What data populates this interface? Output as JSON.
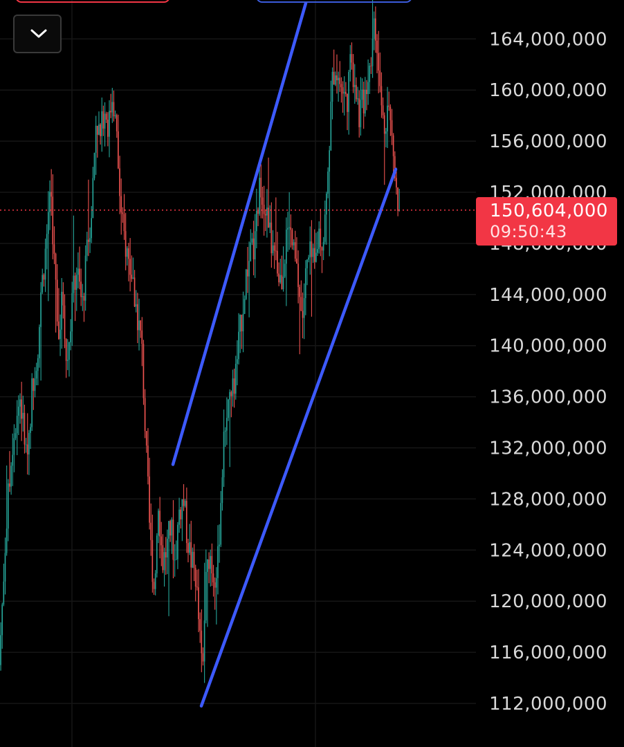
{
  "chart_data": {
    "type": "candlestick",
    "title": "",
    "xlabel": "",
    "ylabel": "",
    "ylim": [
      109000000,
      167000000
    ],
    "y_ticks": [
      {
        "value": 112000000,
        "label": "112,000,000"
      },
      {
        "value": 116000000,
        "label": "116,000,000"
      },
      {
        "value": 120000000,
        "label": "120,000,000"
      },
      {
        "value": 124000000,
        "label": "124,000,000"
      },
      {
        "value": 128000000,
        "label": "128,000,000"
      },
      {
        "value": 132000000,
        "label": "132,000,000"
      },
      {
        "value": 136000000,
        "label": "136,000,000"
      },
      {
        "value": 140000000,
        "label": "140,000,000"
      },
      {
        "value": 144000000,
        "label": "144,000,000"
      },
      {
        "value": 148000000,
        "label": "148,000,000"
      },
      {
        "value": 152000000,
        "label": "152,000,000"
      },
      {
        "value": 156000000,
        "label": "156,000,000"
      },
      {
        "value": 160000000,
        "label": "160,000,000"
      },
      {
        "value": 164000000,
        "label": "164,000,000"
      }
    ],
    "grid": true,
    "up_color": "#26a69a",
    "down_color": "#ef5350",
    "price_path": [
      [
        0,
        115000000
      ],
      [
        10,
        126000000
      ],
      [
        20,
        133000000
      ],
      [
        30,
        136000000
      ],
      [
        40,
        131000000
      ],
      [
        48,
        137000000
      ],
      [
        56,
        140000000
      ],
      [
        62,
        145000000
      ],
      [
        68,
        148000000
      ],
      [
        74,
        153000000
      ],
      [
        80,
        146000000
      ],
      [
        86,
        141000000
      ],
      [
        92,
        144000000
      ],
      [
        98,
        138000000
      ],
      [
        104,
        143000000
      ],
      [
        112,
        146000000
      ],
      [
        120,
        143000000
      ],
      [
        128,
        148000000
      ],
      [
        134,
        151000000
      ],
      [
        140,
        158000000
      ],
      [
        146,
        156000000
      ],
      [
        152,
        159000000
      ],
      [
        158,
        157000000
      ],
      [
        164,
        160000000
      ],
      [
        170,
        156000000
      ],
      [
        176,
        150000000
      ],
      [
        182,
        148000000
      ],
      [
        190,
        146000000
      ],
      [
        198,
        143000000
      ],
      [
        206,
        140000000
      ],
      [
        212,
        132000000
      ],
      [
        218,
        125000000
      ],
      [
        224,
        121000000
      ],
      [
        230,
        128000000
      ],
      [
        236,
        123000000
      ],
      [
        242,
        124000000
      ],
      [
        248,
        126000000
      ],
      [
        254,
        123000000
      ],
      [
        260,
        127000000
      ],
      [
        266,
        128000000
      ],
      [
        272,
        125000000
      ],
      [
        278,
        123000000
      ],
      [
        284,
        122000000
      ],
      [
        290,
        117000000
      ],
      [
        294,
        114000000
      ],
      [
        298,
        121000000
      ],
      [
        304,
        124000000
      ],
      [
        310,
        122000000
      ],
      [
        316,
        123000000
      ],
      [
        322,
        130000000
      ],
      [
        328,
        135000000
      ],
      [
        334,
        136000000
      ],
      [
        340,
        137000000
      ],
      [
        346,
        140000000
      ],
      [
        352,
        143000000
      ],
      [
        358,
        146000000
      ],
      [
        364,
        147000000
      ],
      [
        370,
        148000000
      ],
      [
        374,
        151000000
      ],
      [
        378,
        153000000
      ],
      [
        384,
        151000000
      ],
      [
        390,
        149000000
      ],
      [
        396,
        147000000
      ],
      [
        402,
        146000000
      ],
      [
        408,
        145000000
      ],
      [
        414,
        148000000
      ],
      [
        420,
        149000000
      ],
      [
        426,
        147000000
      ],
      [
        432,
        145000000
      ],
      [
        438,
        142000000
      ],
      [
        444,
        146000000
      ],
      [
        450,
        147000000
      ],
      [
        456,
        146000000
      ],
      [
        462,
        149000000
      ],
      [
        468,
        148000000
      ],
      [
        474,
        152000000
      ],
      [
        478,
        157000000
      ],
      [
        482,
        161000000
      ],
      [
        486,
        162000000
      ],
      [
        490,
        161000000
      ],
      [
        496,
        160000000
      ],
      [
        502,
        159000000
      ],
      [
        508,
        162000000
      ],
      [
        514,
        161000000
      ],
      [
        520,
        158000000
      ],
      [
        526,
        159000000
      ],
      [
        532,
        161000000
      ],
      [
        538,
        163000000
      ],
      [
        542,
        165000000
      ],
      [
        546,
        163000000
      ],
      [
        550,
        160000000
      ],
      [
        556,
        157000000
      ],
      [
        562,
        159000000
      ],
      [
        566,
        157000000
      ],
      [
        570,
        155000000
      ],
      [
        574,
        153000000
      ],
      [
        577,
        150604000
      ]
    ],
    "trendlines": [
      {
        "x1": 250,
        "y1": 130700000,
        "x2": 442,
        "y2": 166800000,
        "color": "#3d5afe"
      },
      {
        "x1": 291,
        "y1": 111800000,
        "x2": 572,
        "y2": 153800000,
        "color": "#3d5afe"
      }
    ],
    "last_price": {
      "value": 150604000,
      "label": "150,604,000",
      "timer": "09:50:43",
      "color": "#f23645"
    }
  },
  "ui": {
    "collapse_icon": "chevron-down-icon"
  }
}
